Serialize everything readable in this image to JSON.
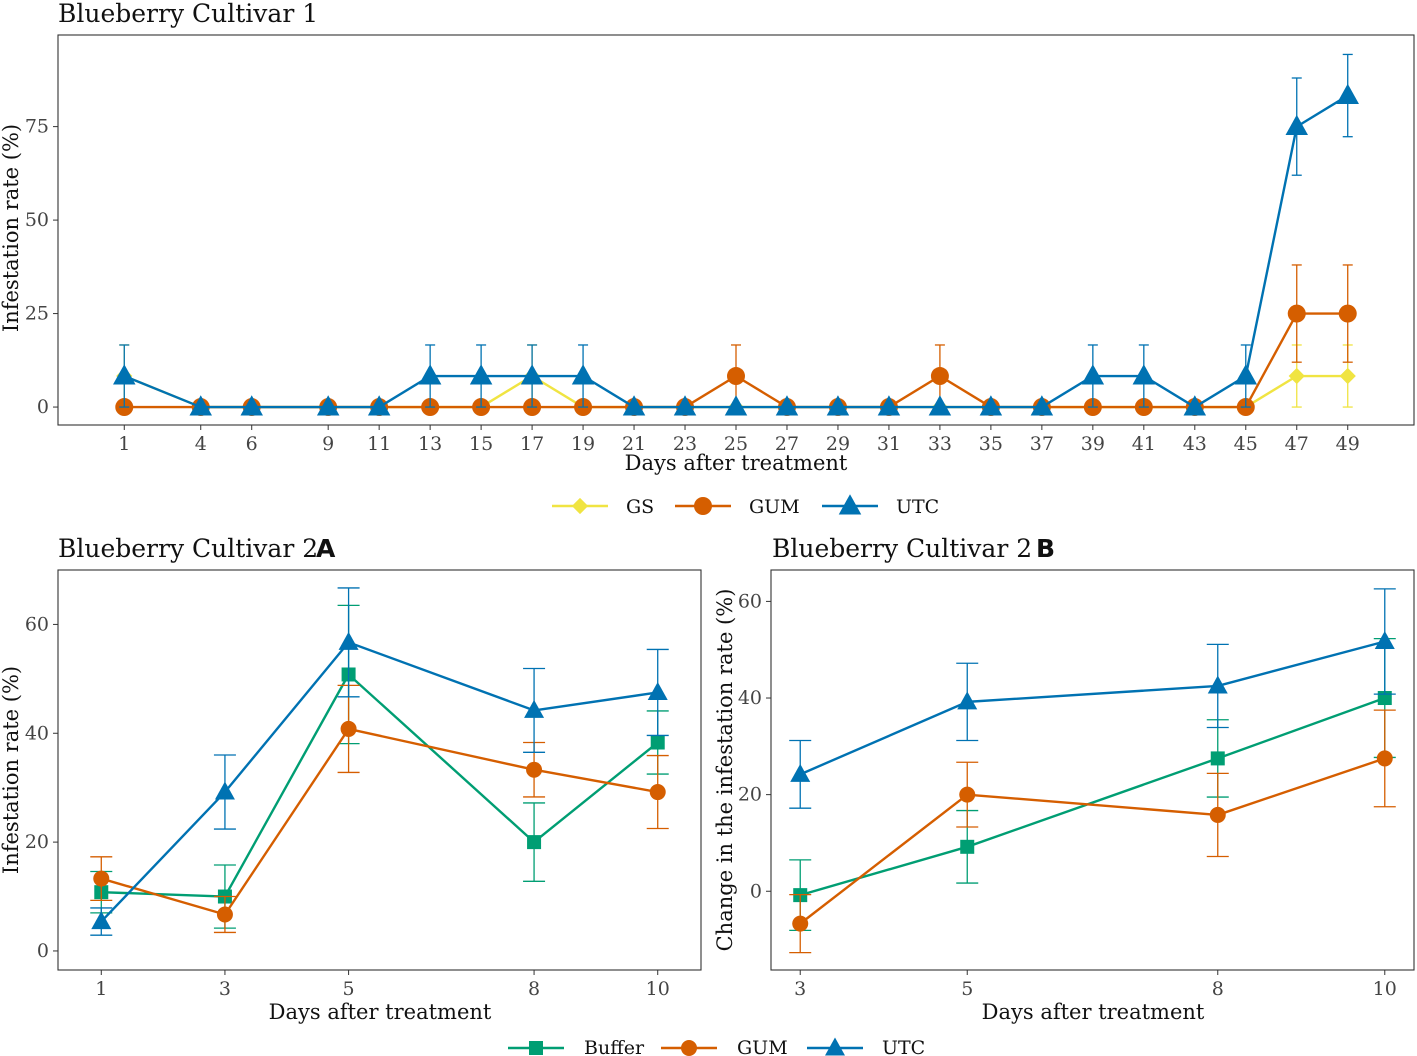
{
  "chart_data": [
    {
      "type": "line",
      "title": "Blueberry Cultivar 1",
      "title_tag": "",
      "xlabel": "Days after treatment",
      "ylabel": "Infestation rate (%)",
      "x": [
        1,
        4,
        6,
        9,
        11,
        13,
        15,
        17,
        19,
        21,
        23,
        25,
        27,
        29,
        31,
        33,
        35,
        37,
        39,
        41,
        43,
        45,
        47,
        49
      ],
      "xlim": [
        -1.6,
        51.6
      ],
      "ylim": [
        -4.8,
        99.5
      ],
      "yticks": [
        0,
        25,
        50,
        75
      ],
      "series": [
        {
          "name": "GS",
          "color": "#F0E442",
          "marker": "diamond",
          "values": [
            8.3,
            0,
            0,
            0,
            0,
            0,
            0,
            8.3,
            0,
            0,
            0,
            0,
            0,
            0,
            0,
            0,
            0,
            0,
            0,
            0,
            0,
            0,
            8.3,
            8.3
          ],
          "errors": [
            8.3,
            0,
            0,
            0,
            0,
            0,
            0,
            8.3,
            0,
            0,
            0,
            0,
            0,
            0,
            0,
            0,
            0,
            0,
            0,
            0,
            0,
            0,
            8.3,
            8.3
          ]
        },
        {
          "name": "GUM",
          "color": "#D55E00",
          "marker": "circle",
          "values": [
            0,
            0,
            0,
            0,
            0,
            0,
            0,
            0,
            0,
            0,
            0,
            8.3,
            0,
            0,
            0,
            8.3,
            0,
            0,
            0,
            0,
            0,
            0,
            25,
            25
          ],
          "errors": [
            0,
            0,
            0,
            0,
            0,
            0,
            0,
            0,
            0,
            0,
            0,
            8.3,
            0,
            0,
            0,
            8.3,
            0,
            0,
            0,
            0,
            0,
            0,
            13,
            13
          ]
        },
        {
          "name": "UTC",
          "color": "#0072B2",
          "marker": "triangle",
          "values": [
            8.3,
            0,
            0,
            0,
            0,
            8.3,
            8.3,
            8.3,
            8.3,
            0,
            0,
            0,
            0,
            0,
            0,
            0,
            0,
            0,
            8.3,
            8.3,
            0,
            8.3,
            75,
            83.3
          ],
          "errors": [
            8.3,
            0,
            0,
            0,
            0,
            8.3,
            8.3,
            8.3,
            8.3,
            0,
            0,
            0,
            0,
            0,
            0,
            0,
            0,
            0,
            8.3,
            8.3,
            0,
            8.3,
            13,
            11
          ]
        }
      ]
    },
    {
      "type": "line",
      "title": "Blueberry Cultivar 2",
      "title_tag": "A",
      "xlabel": "Days after treatment",
      "ylabel": "Infestation rate (%)",
      "x": [
        1,
        3,
        5,
        8,
        10
      ],
      "xlim": [
        0.3,
        10.7
      ],
      "ylim": [
        -3.5,
        70
      ],
      "yticks": [
        0,
        20,
        40,
        60
      ],
      "series": [
        {
          "name": "Buffer",
          "color": "#009E73",
          "marker": "square",
          "values": [
            10.8,
            10,
            50.8,
            20,
            38.3
          ],
          "errors": [
            3.8,
            5.8,
            12.7,
            7.2,
            5.8
          ]
        },
        {
          "name": "GUM",
          "color": "#D55E00",
          "marker": "circle",
          "values": [
            13.3,
            6.7,
            40.8,
            33.3,
            29.2
          ],
          "errors": [
            4,
            3.3,
            8,
            5,
            6.7
          ]
        },
        {
          "name": "UTC",
          "color": "#0072B2",
          "marker": "triangle",
          "values": [
            5.4,
            29.2,
            56.7,
            44.2,
            47.5
          ],
          "errors": [
            2.5,
            6.8,
            10,
            7.7,
            7.9
          ]
        }
      ]
    },
    {
      "type": "line",
      "title": "Blueberry Cultivar 2",
      "title_tag": "B",
      "xlabel": "Days after treatment",
      "ylabel": "Change in the infestation rate (%)",
      "x": [
        3,
        5,
        8,
        10
      ],
      "xlim": [
        2.65,
        10.35
      ],
      "ylim": [
        -16.3,
        66.5
      ],
      "yticks": [
        0,
        20,
        40,
        60
      ],
      "series": [
        {
          "name": "Buffer",
          "color": "#009E73",
          "marker": "square",
          "values": [
            -0.8,
            9.2,
            27.5,
            40
          ],
          "errors": [
            7.3,
            7.5,
            8,
            12.3
          ]
        },
        {
          "name": "GUM",
          "color": "#D55E00",
          "marker": "circle",
          "values": [
            -6.7,
            20,
            15.8,
            27.5
          ],
          "errors": [
            6,
            6.7,
            8.6,
            10
          ]
        },
        {
          "name": "UTC",
          "color": "#0072B2",
          "marker": "triangle",
          "values": [
            24.2,
            39.2,
            42.5,
            51.7
          ],
          "errors": [
            7,
            8,
            8.6,
            10.9
          ]
        }
      ]
    }
  ],
  "legend_top": [
    {
      "label": "GS",
      "color": "#F0E442",
      "marker": "diamond"
    },
    {
      "label": "GUM",
      "color": "#D55E00",
      "marker": "circle"
    },
    {
      "label": "UTC",
      "color": "#0072B2",
      "marker": "triangle"
    }
  ],
  "legend_bottom": [
    {
      "label": "Buffer",
      "color": "#009E73",
      "marker": "square"
    },
    {
      "label": "GUM",
      "color": "#D55E00",
      "marker": "circle"
    },
    {
      "label": "UTC",
      "color": "#0072B2",
      "marker": "triangle"
    }
  ]
}
